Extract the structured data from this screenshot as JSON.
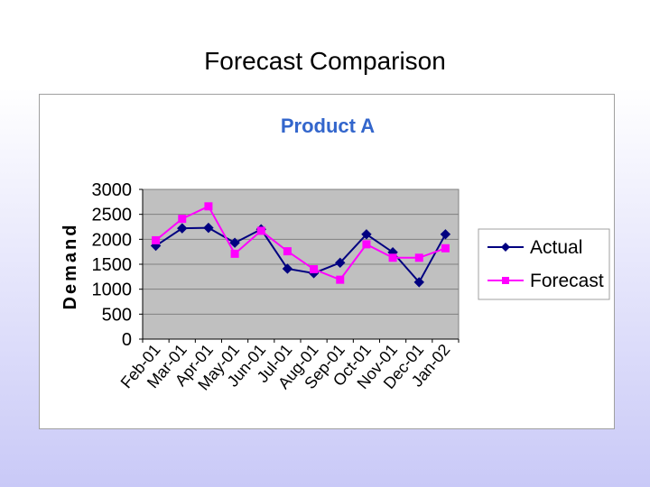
{
  "slide": {
    "title": "Forecast Comparison"
  },
  "colors": {
    "actual": "#000080",
    "forecast": "#ff00ff",
    "title": "#3366cc",
    "plot_bg": "#c0c0c0",
    "gridline": "#808080"
  },
  "chart_data": {
    "type": "line",
    "title": "Product A",
    "xlabel": "",
    "ylabel": "Demand",
    "ylim": [
      0,
      3000
    ],
    "yticks": [
      "0",
      "500",
      "1000",
      "1500",
      "2000",
      "2500",
      "3000"
    ],
    "grid": true,
    "legend": "right",
    "categories": [
      "Feb-01",
      "Mar-01",
      "Apr-01",
      "May-01",
      "Jun-01",
      "Jul-01",
      "Aug-01",
      "Sep-01",
      "Oct-01",
      "Nov-01",
      "Dec-01",
      "Jan-02"
    ],
    "series": [
      {
        "name": "Actual",
        "marker": "diamond",
        "values": [
          1870,
          2220,
          2230,
          1930,
          2200,
          1410,
          1320,
          1530,
          2100,
          1740,
          1140,
          2100
        ]
      },
      {
        "name": "Forecast",
        "marker": "square",
        "values": [
          1980,
          2410,
          2660,
          1710,
          2170,
          1760,
          1400,
          1190,
          1900,
          1630,
          1630,
          1820
        ]
      }
    ]
  }
}
